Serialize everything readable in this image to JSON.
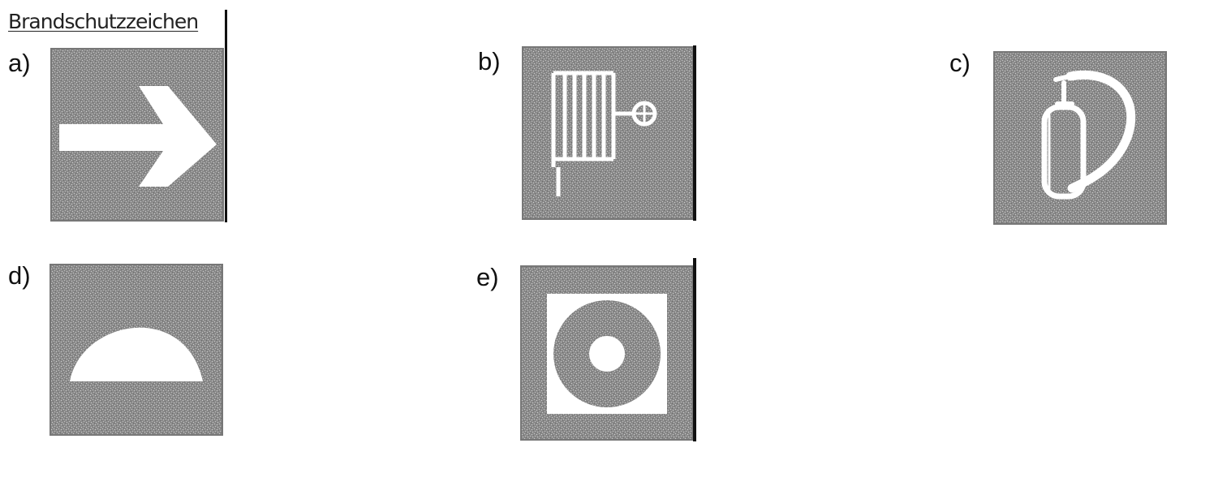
{
  "title": "Brandschutzzeichen",
  "signs": [
    {
      "id": "a",
      "label": "a)",
      "symbol": "arrow-icon"
    },
    {
      "id": "b",
      "label": "b)",
      "symbol": "fire-hose-reel-icon"
    },
    {
      "id": "c",
      "label": "c)",
      "symbol": "fire-extinguisher-icon"
    },
    {
      "id": "d",
      "label": "d)",
      "symbol": "fire-alarm-half-dome-icon"
    },
    {
      "id": "e",
      "label": "e)",
      "symbol": "fire-hose-ring-icon"
    }
  ],
  "colors": {
    "sign_background": "#8e8e8e",
    "symbol": "#ffffff",
    "text": "#111111"
  }
}
